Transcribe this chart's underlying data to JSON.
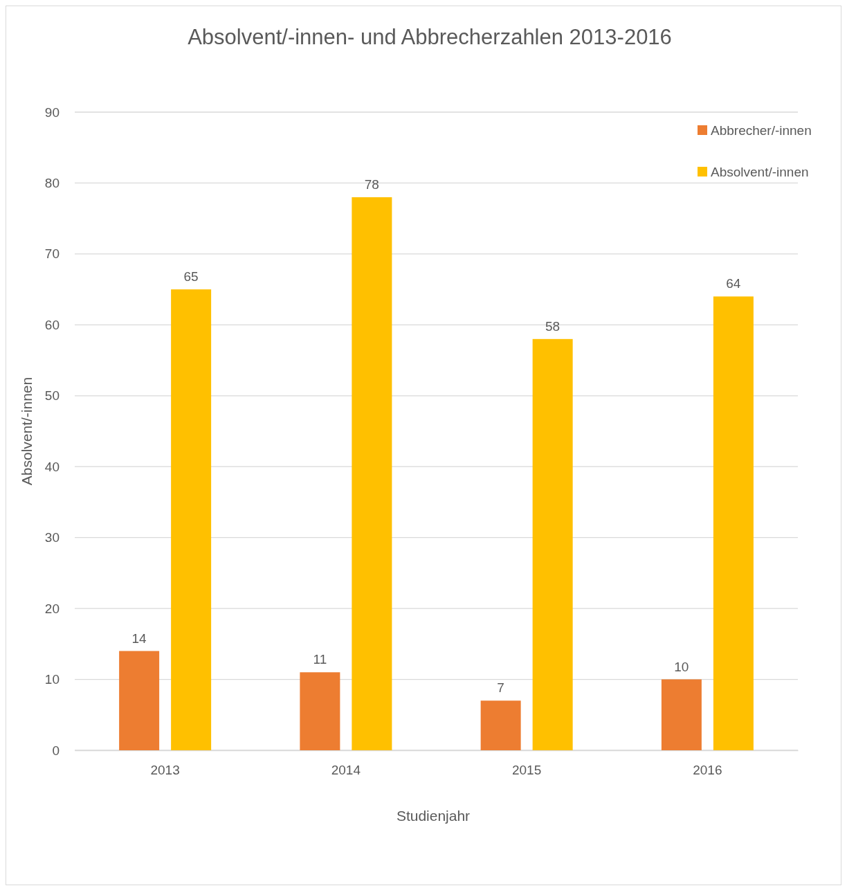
{
  "chart_data": {
    "type": "bar",
    "title": "Absolvent/-innen- und Abbrecherzahlen 2013-2016",
    "xlabel": "Studienjahr",
    "ylabel": "Absolvent/-innen",
    "categories": [
      "2013",
      "2014",
      "2015",
      "2016"
    ],
    "series": [
      {
        "name": "Abbrecher/-innen",
        "color": "#ed7d31",
        "values": [
          14,
          11,
          7,
          10
        ]
      },
      {
        "name": "Absolvent/-innen",
        "color": "#ffc000",
        "values": [
          65,
          78,
          58,
          64
        ]
      }
    ],
    "ylim": [
      0,
      90
    ],
    "yticks": [
      0,
      10,
      20,
      30,
      40,
      50,
      60,
      70,
      80,
      90
    ],
    "grid": "y",
    "legend": "top right",
    "data_labels": true
  }
}
